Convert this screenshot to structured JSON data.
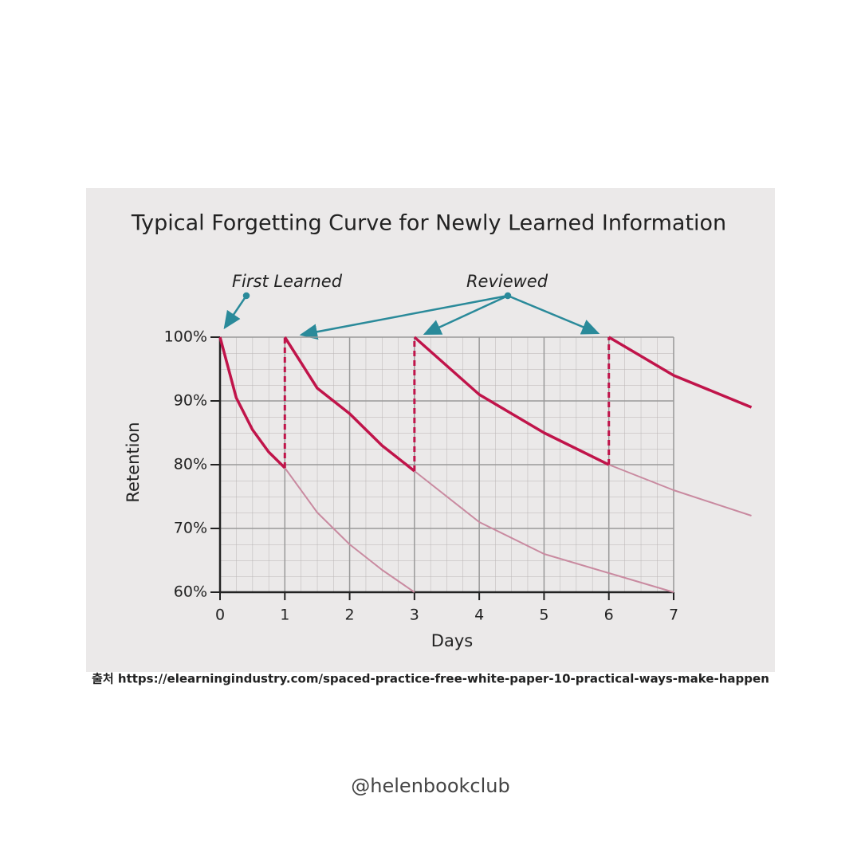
{
  "chart_data": {
    "type": "line",
    "title": "Typical Forgetting Curve for Newly Learned Information",
    "x_label": "Days",
    "y_label": "Retention",
    "annotations": [
      {
        "text": "First Learned"
      },
      {
        "text": "Reviewed"
      }
    ],
    "xlim": [
      0,
      7
    ],
    "xticks": [
      0,
      1,
      2,
      3,
      4,
      5,
      6,
      7
    ],
    "ylim": [
      60,
      100
    ],
    "yticks": [
      {
        "value": 60,
        "label": "60%"
      },
      {
        "value": 70,
        "label": "70%"
      },
      {
        "value": 80,
        "label": "80%"
      },
      {
        "value": 90,
        "label": "90%"
      },
      {
        "value": 100,
        "label": "100%"
      }
    ],
    "grid": true,
    "series": [
      {
        "style": "solid",
        "color": "#c0144a",
        "x": [
          0,
          0.25,
          0.5,
          0.75,
          1
        ],
        "values": [
          100,
          90.5,
          85.5,
          82,
          79.5
        ]
      },
      {
        "style": "faded",
        "color": "#c98aa0",
        "x": [
          1,
          1.5,
          2,
          2.5,
          3
        ],
        "values": [
          79.5,
          72.5,
          67.5,
          63.5,
          60
        ]
      },
      {
        "style": "dashed",
        "color": "#c0144a",
        "x": [
          1,
          1
        ],
        "values": [
          79.5,
          100
        ]
      },
      {
        "style": "solid",
        "color": "#c0144a",
        "x": [
          1,
          1.5,
          2,
          2.5,
          3
        ],
        "values": [
          100,
          92,
          88,
          83,
          79
        ]
      },
      {
        "style": "faded",
        "color": "#c98aa0",
        "x": [
          3,
          4,
          5,
          6,
          7
        ],
        "values": [
          79,
          71,
          66,
          63,
          60
        ]
      },
      {
        "style": "dashed",
        "color": "#c0144a",
        "x": [
          3,
          3
        ],
        "values": [
          79,
          100
        ]
      },
      {
        "style": "solid",
        "color": "#c0144a",
        "x": [
          3,
          4,
          5,
          6
        ],
        "values": [
          100,
          91,
          85,
          80
        ]
      },
      {
        "style": "faded",
        "color": "#c98aa0",
        "x": [
          6,
          7,
          8.2
        ],
        "values": [
          80,
          76,
          72
        ]
      },
      {
        "style": "dashed",
        "color": "#c0144a",
        "x": [
          6,
          6
        ],
        "values": [
          80,
          100
        ]
      },
      {
        "style": "solid",
        "color": "#c0144a",
        "x": [
          6,
          7,
          8.2
        ],
        "values": [
          100,
          94,
          89
        ]
      }
    ]
  },
  "source": "출처 https://elearningindustry.com/spaced-practice-free-white-paper-10-practical-ways-make-happen",
  "handle": "@helenbookclub"
}
